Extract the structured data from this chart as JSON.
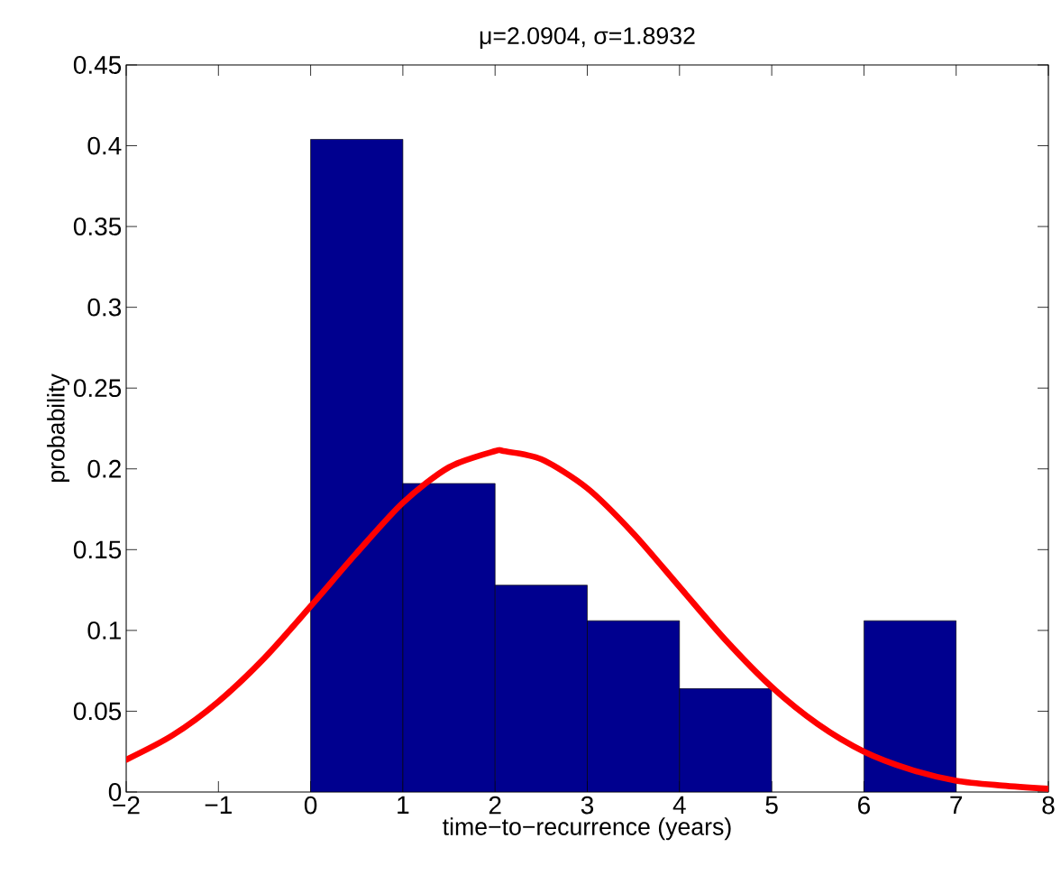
{
  "chart_data": {
    "type": "histogram",
    "title": "μ=2.0904, σ=1.8932",
    "xlabel": "time−to−recurrence (years)",
    "ylabel": "probability",
    "bins": [
      0,
      1,
      2,
      3,
      4,
      5,
      6,
      7
    ],
    "values": [
      0.404,
      0.191,
      0.128,
      0.106,
      0.064,
      0,
      0.106
    ],
    "color": "#00008f",
    "series": [
      {
        "type": "line",
        "color": "#ff0000",
        "x": [
          -2,
          -1.5,
          -1,
          -0.5,
          0,
          0.5,
          1,
          1.5,
          2,
          2.09,
          2.5,
          3,
          3.5,
          4,
          4.5,
          5,
          5.5,
          6,
          6.5,
          7,
          7.5,
          8
        ],
        "values": [
          0.02,
          0.035,
          0.056,
          0.083,
          0.115,
          0.148,
          0.179,
          0.201,
          0.211,
          0.211,
          0.206,
          0.188,
          0.16,
          0.127,
          0.094,
          0.065,
          0.042,
          0.025,
          0.014,
          0.007,
          0.004,
          0.002
        ]
      }
    ],
    "xlim": [
      -2,
      8
    ],
    "ylim": [
      0,
      0.45
    ],
    "xticks": [
      {
        "value": -2,
        "label": "−2"
      },
      {
        "value": -1,
        "label": "−1"
      },
      0,
      1,
      2,
      3,
      4,
      5,
      6,
      7,
      8
    ],
    "yticks": [
      0,
      0.05,
      0.1,
      0.15,
      0.2,
      0.25,
      0.3,
      0.35,
      0.4,
      0.45
    ],
    "grid": false,
    "legend": false
  }
}
